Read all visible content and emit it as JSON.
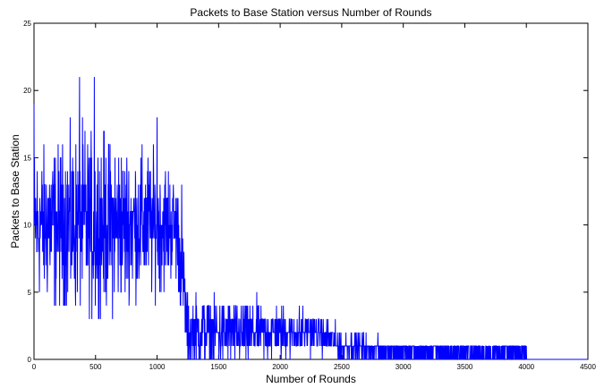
{
  "chart_data": {
    "type": "line",
    "title": "Packets to Base Station versus Number of Rounds",
    "xlabel": "Number of Rounds",
    "ylabel": "Packets to Base Station",
    "xlim": [
      0,
      4500
    ],
    "ylim": [
      0,
      25
    ],
    "x_ticks": [
      "0",
      "500",
      "1000",
      "1500",
      "2000",
      "2500",
      "3000",
      "3500",
      "4000",
      "4500"
    ],
    "y_ticks": [
      "0",
      "5",
      "10",
      "15",
      "20",
      "25"
    ],
    "grid": false,
    "series_color": "#0000ff",
    "series": [
      {
        "x": [
          0,
          500,
          1000,
          1150,
          1200,
          1250,
          1500,
          2000,
          2300,
          2500,
          3000,
          3500,
          4000,
          4020,
          4500
        ],
        "y_mean": [
          10,
          10,
          10,
          10,
          7,
          2,
          2,
          2,
          2,
          1,
          0.5,
          0.5,
          0.5,
          0,
          0
        ],
        "y_min": [
          5,
          3,
          4,
          5,
          2,
          0,
          0,
          0,
          0,
          0,
          0,
          0,
          0,
          0,
          0
        ],
        "y_max": [
          19,
          21,
          18,
          16,
          13,
          6,
          6,
          5,
          4,
          3,
          1,
          1,
          1,
          0,
          0
        ],
        "description_of_peaks": [
          [
            0,
            19
          ],
          [
            370,
            21
          ],
          [
            490,
            21
          ],
          [
            1000,
            18
          ],
          [
            1200,
            13
          ]
        ]
      }
    ]
  }
}
